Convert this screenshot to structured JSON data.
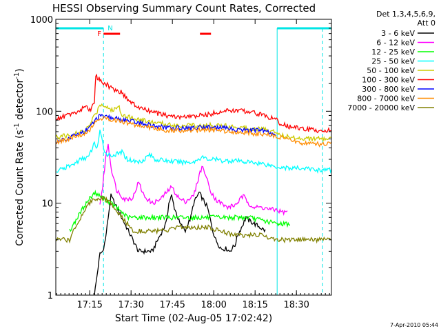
{
  "chart_data": {
    "type": "line",
    "title": "HESSI Observing Summary Count Rates, Corrected",
    "xlabel": "Start Time (02-Aug-05 17:02:42)",
    "ylabel": "Corrected Count Rate (s⁻¹ detector⁻¹)",
    "ylabel_main": "Corrected Count Rate (s",
    "ylabel_exp1": "-1",
    "ylabel_mid": " detector",
    "ylabel_exp2": "-1",
    "ylabel_end": ")",
    "yscale": "log",
    "xlim": [
      0,
      100
    ],
    "ylim": [
      1,
      1000
    ],
    "x_ticks": [
      "17:15",
      "17:30",
      "17:45",
      "18:00",
      "18:15",
      "18:30"
    ],
    "x_tick_values": [
      12.3,
      27.3,
      42.3,
      57.3,
      72.3,
      87.3
    ],
    "y_ticks": [
      "1",
      "10",
      "100",
      "1000"
    ],
    "y_tick_values": [
      1,
      10,
      100,
      1000
    ],
    "legend_header": [
      "Det 1,3,4,5,6,9,",
      "Att 0"
    ],
    "legend_placement": "right",
    "flags": {
      "F_label": "F",
      "N_label": "N",
      "night_bars": [
        [
          0,
          17.3
        ],
        [
          80.3,
          100
        ]
      ],
      "flare_bars": [
        [
          17.3,
          23.3
        ],
        [
          52.3,
          56.3
        ]
      ],
      "markers": [
        {
          "x": 17.3,
          "style": "dashed"
        },
        {
          "x": 80.3,
          "style": "solid"
        },
        {
          "x": 96.8,
          "style": "dashed"
        }
      ]
    },
    "series": [
      {
        "name": "3 - 6 keV",
        "color": "#000000",
        "x": [
          14,
          16,
          17,
          18,
          19,
          20,
          25,
          30,
          35,
          37,
          40,
          41,
          42,
          43,
          45,
          47,
          48,
          49,
          50,
          52,
          55,
          57,
          58,
          60,
          62,
          63,
          65,
          66,
          68,
          69,
          70,
          72,
          74,
          76
        ],
        "y": [
          1,
          2.8,
          3,
          4,
          7,
          12,
          6,
          3,
          3,
          4,
          6,
          10,
          12,
          9,
          6,
          5,
          6,
          7,
          10,
          13,
          9,
          5,
          4,
          3.2,
          3.2,
          3,
          3.5,
          4.5,
          6,
          7,
          6.5,
          6,
          5.5,
          5
        ]
      },
      {
        "name": "6 - 12 keV",
        "color": "#ff00ff",
        "x": [
          16,
          17,
          18,
          19,
          20,
          22,
          25,
          28,
          30,
          32,
          35,
          38,
          40,
          42,
          45,
          47,
          50,
          52,
          53,
          54,
          56,
          58,
          60,
          62,
          65,
          68,
          70,
          72,
          75,
          78,
          80,
          82,
          84
        ],
        "y": [
          10,
          15,
          30,
          45,
          25,
          14,
          11,
          11.5,
          17,
          12,
          10,
          11,
          13,
          15,
          11,
          10.5,
          12,
          20,
          25,
          22,
          14,
          11,
          10,
          9,
          9.5,
          12,
          10,
          9,
          9,
          8.5,
          8.5,
          8,
          8
        ]
      },
      {
        "name": "12 - 25 keV",
        "color": "#00ff00",
        "x": [
          5,
          10,
          12,
          14,
          16,
          18,
          20,
          22,
          24,
          26,
          30,
          35,
          40,
          45,
          50,
          55,
          60,
          65,
          70,
          75,
          80,
          85
        ],
        "y": [
          5,
          9,
          11,
          13,
          12,
          11,
          10,
          9,
          8,
          7,
          7,
          7,
          7,
          7,
          7,
          7,
          7,
          7,
          7,
          6.5,
          6,
          6
        ]
      },
      {
        "name": "25 - 50 keV",
        "color": "#00ffff",
        "x": [
          0,
          3,
          6,
          9,
          12,
          13,
          14,
          15,
          16,
          17,
          18,
          20,
          22,
          24,
          26,
          28,
          30,
          32,
          34,
          36,
          40,
          45,
          50,
          53,
          55,
          58,
          60,
          65,
          70,
          75,
          80,
          85,
          90,
          95,
          100
        ],
        "y": [
          22,
          24,
          26,
          30,
          32,
          38,
          45,
          40,
          60,
          45,
          35,
          33,
          34,
          36,
          30,
          29,
          28,
          30,
          34,
          30,
          29,
          28,
          28,
          32,
          30,
          30,
          29,
          29,
          28,
          27,
          25,
          24,
          24,
          23,
          23
        ]
      },
      {
        "name": "50 - 100 keV",
        "color": "#cccc00",
        "x": [
          0,
          5,
          10,
          12,
          14,
          15,
          16,
          18,
          19,
          20,
          22,
          23,
          24,
          26,
          28,
          30,
          35,
          40,
          45,
          50,
          55,
          58,
          60,
          65,
          70,
          75,
          80,
          82,
          85,
          90,
          95,
          100
        ],
        "y": [
          52,
          55,
          60,
          68,
          90,
          100,
          120,
          115,
          110,
          102,
          108,
          112,
          92,
          88,
          84,
          82,
          76,
          72,
          70,
          70,
          70,
          72,
          70,
          68,
          66,
          64,
          60,
          55,
          52,
          51,
          50,
          50
        ]
      },
      {
        "name": "100 - 300 keV",
        "color": "#ff0000",
        "x": [
          0,
          3,
          6,
          9,
          11,
          12,
          13,
          14,
          14.5,
          16,
          18,
          20,
          22,
          24,
          26,
          28,
          30,
          35,
          40,
          45,
          50,
          55,
          60,
          65,
          70,
          75,
          80,
          82,
          85,
          90,
          95,
          100
        ],
        "y": [
          82,
          88,
          94,
          102,
          118,
          102,
          108,
          130,
          240,
          220,
          200,
          180,
          170,
          160,
          135,
          120,
          110,
          98,
          90,
          86,
          88,
          92,
          100,
          102,
          100,
          92,
          80,
          72,
          68,
          64,
          62,
          62
        ]
      },
      {
        "name": "300 - 800 keV",
        "color": "#0000ff",
        "x": [
          0,
          5,
          10,
          12,
          14,
          15,
          16,
          18,
          20,
          25,
          30,
          35,
          40,
          45,
          50,
          55,
          60,
          65,
          70,
          75,
          80
        ],
        "y": [
          46,
          52,
          60,
          65,
          78,
          85,
          88,
          86,
          85,
          80,
          75,
          70,
          66,
          66,
          66,
          68,
          66,
          64,
          62,
          62,
          55
        ]
      },
      {
        "name": "800 - 7000 keV",
        "color": "#ff8c00",
        "x": [
          0,
          5,
          10,
          12,
          14,
          15,
          16,
          18,
          20,
          25,
          30,
          35,
          40,
          45,
          50,
          55,
          60,
          65,
          70,
          75,
          80,
          85,
          90,
          95,
          100
        ],
        "y": [
          45,
          50,
          57,
          62,
          72,
          82,
          85,
          83,
          82,
          76,
          70,
          66,
          62,
          62,
          62,
          63,
          62,
          60,
          58,
          56,
          54,
          48,
          45,
          44,
          44
        ]
      },
      {
        "name": "7000 - 20000 keV",
        "color": "#808000",
        "x": [
          0,
          5,
          6,
          8,
          10,
          12,
          14,
          16,
          18,
          20,
          22,
          24,
          26,
          28,
          30,
          35,
          40,
          45,
          50,
          55,
          60,
          65,
          70,
          75,
          80,
          85,
          90,
          95,
          100
        ],
        "y": [
          4,
          4,
          5,
          6,
          8,
          10,
          11,
          11.5,
          11,
          10,
          8,
          7,
          6,
          5,
          5,
          5,
          5,
          5.5,
          5.5,
          5.5,
          5,
          4.5,
          4.5,
          4.5,
          4,
          4,
          4,
          4,
          4
        ]
      }
    ]
  },
  "footer": {
    "date": "7-Apr-2010 05:44"
  }
}
